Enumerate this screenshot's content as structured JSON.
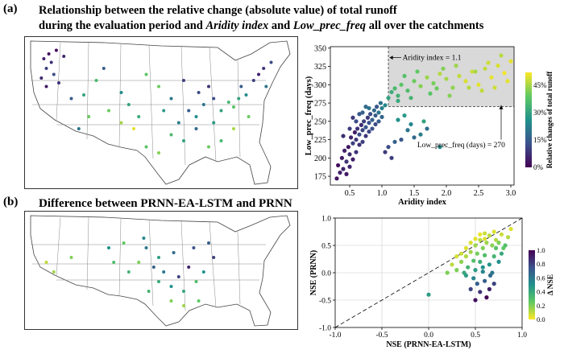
{
  "panel_a": {
    "label": "(a)",
    "title_line1": "Relationship between the relative change (absolute value) of total runoff",
    "title_line2_pre": "during the evaluation period and ",
    "title_line2_var1": "Aridity index",
    "title_line2_mid": " and ",
    "title_line2_var2": "Low_prec_freq",
    "title_line2_post": " all over the catchments"
  },
  "panel_b": {
    "label": "(b)",
    "title": "Difference between PRNN-EA-LSTM and PRNN"
  },
  "chart_data": [
    {
      "type": "scatter",
      "xlabel": "Aridity index",
      "ylabel": "Low_prec_freq (days)",
      "xlim": [
        0.2,
        3.05
      ],
      "ylim": [
        163,
        352
      ],
      "xticks": [
        "0.5",
        "1.0",
        "1.5",
        "2.0",
        "2.5",
        "3.0"
      ],
      "yticks": [
        "175",
        "200",
        "225",
        "250",
        "275",
        "300",
        "325",
        "350"
      ],
      "colorbar": {
        "label": "Relative changes of total runoff",
        "ticks": [
          "0%",
          "15%",
          "30%",
          "45%"
        ],
        "range": [
          0,
          0.52
        ]
      },
      "annotations": [
        "Aridity index = 1.1",
        "Low_prec_freq (days) = 270"
      ],
      "thresholds": {
        "aridity": 1.1,
        "low_prec_freq": 270
      },
      "points": [
        [
          0.3,
          172,
          0.03
        ],
        [
          0.35,
          180,
          0.05
        ],
        [
          0.32,
          190,
          0.02
        ],
        [
          0.4,
          185,
          0.06
        ],
        [
          0.38,
          200,
          0.04
        ],
        [
          0.45,
          195,
          0.08
        ],
        [
          0.42,
          210,
          0.05
        ],
        [
          0.5,
          205,
          0.07
        ],
        [
          0.48,
          215,
          0.03
        ],
        [
          0.55,
          220,
          0.1
        ],
        [
          0.52,
          228,
          0.06
        ],
        [
          0.6,
          225,
          0.09
        ],
        [
          0.58,
          235,
          0.05
        ],
        [
          0.65,
          232,
          0.12
        ],
        [
          0.62,
          240,
          0.08
        ],
        [
          0.7,
          238,
          0.11
        ],
        [
          0.68,
          245,
          0.07
        ],
        [
          0.75,
          242,
          0.14
        ],
        [
          0.72,
          250,
          0.1
        ],
        [
          0.8,
          248,
          0.13
        ],
        [
          0.78,
          255,
          0.09
        ],
        [
          0.85,
          252,
          0.16
        ],
        [
          0.82,
          260,
          0.12
        ],
        [
          0.9,
          258,
          0.15
        ],
        [
          0.88,
          265,
          0.18
        ],
        [
          0.95,
          262,
          0.2
        ],
        [
          0.92,
          270,
          0.14
        ],
        [
          1.0,
          268,
          0.22
        ],
        [
          0.98,
          275,
          0.19
        ],
        [
          1.05,
          272,
          0.24
        ],
        [
          0.45,
          178,
          0.04
        ],
        [
          0.5,
          188,
          0.06
        ],
        [
          0.55,
          198,
          0.05
        ],
        [
          0.6,
          208,
          0.08
        ],
        [
          0.65,
          218,
          0.07
        ],
        [
          0.7,
          222,
          0.1
        ],
        [
          0.75,
          230,
          0.09
        ],
        [
          0.8,
          236,
          0.11
        ],
        [
          0.85,
          240,
          0.13
        ],
        [
          0.9,
          246,
          0.12
        ],
        [
          0.95,
          250,
          0.15
        ],
        [
          1.0,
          256,
          0.17
        ],
        [
          0.4,
          230,
          0.07
        ],
        [
          0.5,
          240,
          0.1
        ],
        [
          0.6,
          250,
          0.12
        ],
        [
          0.7,
          262,
          0.16
        ],
        [
          0.8,
          268,
          0.2
        ],
        [
          0.55,
          255,
          0.09
        ],
        [
          0.65,
          260,
          0.14
        ],
        [
          0.75,
          270,
          0.18
        ],
        [
          1.1,
          215,
          0.12
        ],
        [
          1.2,
          222,
          0.16
        ],
        [
          1.3,
          225,
          0.14
        ],
        [
          1.4,
          238,
          0.2
        ],
        [
          1.5,
          228,
          0.18
        ],
        [
          1.6,
          232,
          0.22
        ],
        [
          1.7,
          240,
          0.19
        ],
        [
          1.45,
          246,
          0.24
        ],
        [
          1.25,
          252,
          0.26
        ],
        [
          1.35,
          258,
          0.28
        ],
        [
          1.15,
          200,
          0.1
        ],
        [
          1.05,
          208,
          0.09
        ],
        [
          1.9,
          215,
          0.25
        ],
        [
          1.65,
          250,
          0.3
        ],
        [
          1.1,
          282,
          0.3
        ],
        [
          1.15,
          290,
          0.32
        ],
        [
          1.2,
          295,
          0.35
        ],
        [
          1.25,
          285,
          0.33
        ],
        [
          1.3,
          300,
          0.38
        ],
        [
          1.4,
          292,
          0.36
        ],
        [
          1.5,
          305,
          0.4
        ],
        [
          1.6,
          298,
          0.42
        ],
        [
          1.7,
          310,
          0.44
        ],
        [
          1.8,
          302,
          0.41
        ],
        [
          1.9,
          315,
          0.46
        ],
        [
          2.0,
          308,
          0.45
        ],
        [
          2.1,
          296,
          0.43
        ],
        [
          2.2,
          312,
          0.47
        ],
        [
          2.3,
          305,
          0.49
        ],
        [
          2.4,
          318,
          0.48
        ],
        [
          2.5,
          300,
          0.5
        ],
        [
          2.6,
          322,
          0.47
        ],
        [
          2.7,
          310,
          0.5
        ],
        [
          2.8,
          326,
          0.49
        ],
        [
          2.9,
          316,
          0.51
        ],
        [
          3.0,
          332,
          0.5
        ],
        [
          2.85,
          340,
          0.46
        ],
        [
          2.65,
          330,
          0.48
        ],
        [
          2.45,
          318,
          0.45
        ],
        [
          2.15,
          326,
          0.44
        ],
        [
          1.95,
          322,
          0.42
        ],
        [
          1.55,
          318,
          0.39
        ],
        [
          1.35,
          312,
          0.37
        ],
        [
          2.75,
          296,
          0.48
        ],
        [
          2.95,
          305,
          0.5
        ],
        [
          2.35,
          296,
          0.46
        ],
        [
          1.85,
          295,
          0.4
        ],
        [
          1.45,
          282,
          0.34
        ],
        [
          1.25,
          278,
          0.31
        ],
        [
          1.75,
          288,
          0.38
        ],
        [
          2.05,
          285,
          0.42
        ],
        [
          2.55,
          292,
          0.47
        ]
      ]
    },
    {
      "type": "scatter",
      "xlabel": "NSE (PRNN-EA-LSTM)",
      "ylabel": "NSE (PRNN)",
      "xlim": [
        -1.0,
        1.0
      ],
      "ylim": [
        -1.0,
        1.0
      ],
      "xticks": [
        "-1.0",
        "-0.5",
        "0.0",
        "0.5",
        "1.0"
      ],
      "yticks": [
        "-1.0",
        "-0.5",
        "0.0",
        "0.5",
        "1.0"
      ],
      "colorbar": {
        "label": "Δ NSE",
        "ticks": [
          "0.0",
          "0.2",
          "0.4",
          "0.6",
          "0.8",
          "1.0"
        ],
        "range": [
          0,
          1
        ]
      },
      "points": [
        [
          0.6,
          0.72,
          0.08
        ],
        [
          0.65,
          0.68,
          0.1
        ],
        [
          0.7,
          0.75,
          0.05
        ],
        [
          0.55,
          0.6,
          0.1
        ],
        [
          0.62,
          0.55,
          0.15
        ],
        [
          0.72,
          0.6,
          0.12
        ],
        [
          0.78,
          0.7,
          0.08
        ],
        [
          0.5,
          0.5,
          0.15
        ],
        [
          0.58,
          0.45,
          0.2
        ],
        [
          0.68,
          0.5,
          0.18
        ],
        [
          0.75,
          0.55,
          0.2
        ],
        [
          0.45,
          0.38,
          0.15
        ],
        [
          0.52,
          0.35,
          0.22
        ],
        [
          0.6,
          0.32,
          0.3
        ],
        [
          0.7,
          0.3,
          0.35
        ],
        [
          0.8,
          0.45,
          0.25
        ],
        [
          0.4,
          0.3,
          0.12
        ],
        [
          0.48,
          0.22,
          0.3
        ],
        [
          0.55,
          0.2,
          0.38
        ],
        [
          0.65,
          0.15,
          0.48
        ],
        [
          0.75,
          0.2,
          0.5
        ],
        [
          0.35,
          0.2,
          0.18
        ],
        [
          0.42,
          0.1,
          0.35
        ],
        [
          0.5,
          0.05,
          0.45
        ],
        [
          0.58,
          0.02,
          0.55
        ],
        [
          0.68,
          0.0,
          0.6
        ],
        [
          0.3,
          0.05,
          0.2
        ],
        [
          0.38,
          0.0,
          0.4
        ],
        [
          0.48,
          -0.1,
          0.55
        ],
        [
          0.6,
          -0.15,
          0.7
        ],
        [
          0.7,
          -0.2,
          0.8
        ],
        [
          0.45,
          -0.3,
          0.8
        ],
        [
          0.55,
          -0.35,
          0.85
        ],
        [
          0.65,
          -0.3,
          0.9
        ],
        [
          0.5,
          -0.5,
          0.95
        ],
        [
          0.62,
          -0.45,
          1.0
        ],
        [
          0.0,
          -0.4,
          0.45
        ],
        [
          0.25,
          0.15,
          0.1
        ],
        [
          0.2,
          0.0,
          0.2
        ],
        [
          0.85,
          0.65,
          0.12
        ],
        [
          0.82,
          0.5,
          0.3
        ],
        [
          0.88,
          0.8,
          0.05
        ],
        [
          0.6,
          0.62,
          0.05
        ],
        [
          0.55,
          0.7,
          0.03
        ],
        [
          0.5,
          0.62,
          0.04
        ],
        [
          0.45,
          0.55,
          0.06
        ],
        [
          0.4,
          0.45,
          0.05
        ],
        [
          0.35,
          0.35,
          0.08
        ],
        [
          0.3,
          0.3,
          0.06
        ],
        [
          0.72,
          0.45,
          0.28
        ],
        [
          0.78,
          0.35,
          0.4
        ],
        [
          0.4,
          -0.05,
          0.45
        ],
        [
          0.58,
          0.1,
          0.5
        ],
        [
          0.52,
          -0.2,
          0.7
        ],
        [
          0.66,
          -0.05,
          0.65
        ]
      ]
    }
  ],
  "map_a": {
    "points": [
      [
        0.04,
        0.12,
        0.05
      ],
      [
        0.06,
        0.08,
        0.03
      ],
      [
        0.05,
        0.2,
        0.1
      ],
      [
        0.07,
        0.15,
        0.08
      ],
      [
        0.03,
        0.28,
        0.06
      ],
      [
        0.08,
        0.25,
        0.12
      ],
      [
        0.05,
        0.35,
        0.04
      ],
      [
        0.09,
        0.05,
        0.02
      ],
      [
        0.12,
        0.1,
        0.06
      ],
      [
        0.1,
        0.32,
        0.08
      ],
      [
        0.15,
        0.45,
        0.15
      ],
      [
        0.2,
        0.42,
        0.3
      ],
      [
        0.25,
        0.3,
        0.35
      ],
      [
        0.3,
        0.55,
        0.4
      ],
      [
        0.35,
        0.65,
        0.45
      ],
      [
        0.4,
        0.7,
        0.5
      ],
      [
        0.38,
        0.5,
        0.3
      ],
      [
        0.45,
        0.25,
        0.38
      ],
      [
        0.5,
        0.35,
        0.4
      ],
      [
        0.55,
        0.45,
        0.2
      ],
      [
        0.6,
        0.3,
        0.1
      ],
      [
        0.62,
        0.55,
        0.15
      ],
      [
        0.65,
        0.6,
        0.25
      ],
      [
        0.68,
        0.5,
        0.2
      ],
      [
        0.7,
        0.35,
        0.08
      ],
      [
        0.72,
        0.45,
        0.12
      ],
      [
        0.75,
        0.55,
        0.3
      ],
      [
        0.78,
        0.48,
        0.35
      ],
      [
        0.8,
        0.52,
        0.38
      ],
      [
        0.82,
        0.45,
        0.3
      ],
      [
        0.85,
        0.42,
        0.25
      ],
      [
        0.83,
        0.35,
        0.15
      ],
      [
        0.88,
        0.3,
        0.1
      ],
      [
        0.9,
        0.25,
        0.05
      ],
      [
        0.92,
        0.2,
        0.08
      ],
      [
        0.86,
        0.6,
        0.4
      ],
      [
        0.8,
        0.7,
        0.45
      ],
      [
        0.75,
        0.8,
        0.35
      ],
      [
        0.7,
        0.85,
        0.4
      ],
      [
        0.6,
        0.8,
        0.3
      ],
      [
        0.55,
        0.75,
        0.35
      ],
      [
        0.5,
        0.9,
        0.42
      ],
      [
        0.45,
        0.85,
        0.38
      ],
      [
        0.58,
        0.65,
        0.22
      ],
      [
        0.65,
        0.7,
        0.18
      ],
      [
        0.72,
        0.65,
        0.28
      ],
      [
        0.35,
        0.4,
        0.25
      ],
      [
        0.28,
        0.2,
        0.15
      ],
      [
        0.22,
        0.6,
        0.4
      ],
      [
        0.18,
        0.7,
        0.2
      ],
      [
        0.95,
        0.15,
        0.12
      ],
      [
        0.93,
        0.35,
        0.2
      ],
      [
        0.66,
        0.4,
        0.12
      ],
      [
        0.52,
        0.55,
        0.28
      ],
      [
        0.42,
        0.6,
        0.32
      ]
    ]
  },
  "map_b": {
    "points": [
      [
        0.05,
        0.45,
        0.1
      ],
      [
        0.08,
        0.55,
        0.15
      ],
      [
        0.15,
        0.4,
        0.2
      ],
      [
        0.3,
        0.3,
        0.5
      ],
      [
        0.32,
        0.45,
        0.3
      ],
      [
        0.36,
        0.25,
        0.25
      ],
      [
        0.38,
        0.55,
        0.35
      ],
      [
        0.42,
        0.45,
        0.2
      ],
      [
        0.45,
        0.3,
        0.6
      ],
      [
        0.48,
        0.5,
        0.7
      ],
      [
        0.5,
        0.65,
        0.4
      ],
      [
        0.52,
        0.55,
        0.6
      ],
      [
        0.55,
        0.7,
        0.5
      ],
      [
        0.58,
        0.6,
        0.8
      ],
      [
        0.6,
        0.75,
        0.4
      ],
      [
        0.62,
        0.5,
        0.9
      ],
      [
        0.65,
        0.65,
        0.3
      ],
      [
        0.55,
        0.85,
        0.2
      ],
      [
        0.6,
        0.9,
        0.15
      ],
      [
        0.68,
        0.55,
        0.5
      ],
      [
        0.7,
        0.25,
        0.7
      ],
      [
        0.72,
        0.4,
        0.8
      ],
      [
        0.5,
        0.4,
        0.45
      ],
      [
        0.46,
        0.75,
        0.35
      ],
      [
        0.44,
        0.2,
        0.55
      ],
      [
        0.56,
        0.35,
        0.65
      ],
      [
        0.64,
        0.3,
        0.75
      ],
      [
        0.66,
        0.85,
        0.25
      ]
    ]
  }
}
